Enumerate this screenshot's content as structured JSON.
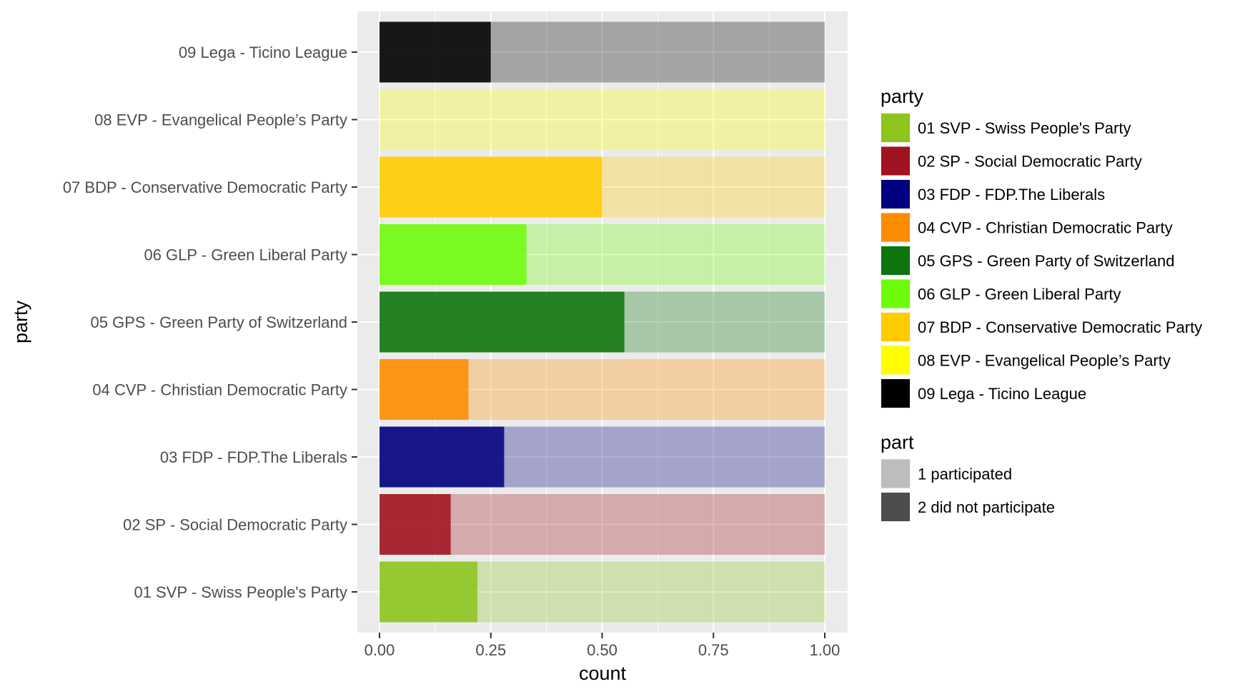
{
  "chart_data": {
    "type": "bar",
    "orientation": "horizontal",
    "stacked": true,
    "xlabel": "count",
    "ylabel": "party",
    "xlim": [
      0,
      1
    ],
    "x_ticks": [
      "0.00",
      "0.25",
      "0.50",
      "0.75",
      "1.00"
    ],
    "grid": true,
    "legend_position": "right",
    "categories": [
      "01 SVP - Swiss People's Party",
      "02 SP - Social Democratic Party",
      "03 FDP - FDP.The Liberals",
      "04 CVP - Christian Democratic Party",
      "05 GPS - Green Party of Switzerland",
      "06 GLP - Green Liberal Party",
      "07 BDP - Conservative Democratic Party",
      "08 EVP - Evangelical People’s Party",
      "09 Lega - Ticino League"
    ],
    "series": [
      {
        "name": "1 participated",
        "values": [
          0.22,
          0.16,
          0.28,
          0.2,
          0.55,
          0.33,
          0.5,
          0.0,
          0.25
        ]
      },
      {
        "name": "2 did not participate",
        "values": [
          0.78,
          0.84,
          0.72,
          0.8,
          0.45,
          0.67,
          0.5,
          1.0,
          0.75
        ]
      }
    ],
    "party_colors": [
      "#8dc41e",
      "#a0131f",
      "#000080",
      "#ff8c00",
      "#0d750d",
      "#6ffc0c",
      "#ffcc00",
      "#ffff00",
      "#000000"
    ],
    "participated_opacity": 0.9,
    "not_participated_opacity": 0.3,
    "legends": [
      {
        "title": "party",
        "items": [
          {
            "label": "01 SVP - Swiss People's Party",
            "color": "#8dc41e"
          },
          {
            "label": "02 SP - Social Democratic Party",
            "color": "#a0131f"
          },
          {
            "label": "03 FDP - FDP.The Liberals",
            "color": "#000080"
          },
          {
            "label": "04 CVP - Christian Democratic Party",
            "color": "#ff8c00"
          },
          {
            "label": "05 GPS - Green Party of Switzerland",
            "color": "#0d750d"
          },
          {
            "label": "06 GLP - Green Liberal Party",
            "color": "#6ffc0c"
          },
          {
            "label": "07 BDP - Conservative Democratic Party",
            "color": "#ffcc00"
          },
          {
            "label": "08 EVP - Evangelical People’s Party",
            "color": "#ffff00"
          },
          {
            "label": "09 Lega - Ticino League",
            "color": "#000000"
          }
        ]
      },
      {
        "title": "part",
        "items": [
          {
            "label": "1 participated",
            "color": "#bdbdbd"
          },
          {
            "label": "2 did not participate",
            "color": "#4d4d4d"
          }
        ]
      }
    ]
  }
}
